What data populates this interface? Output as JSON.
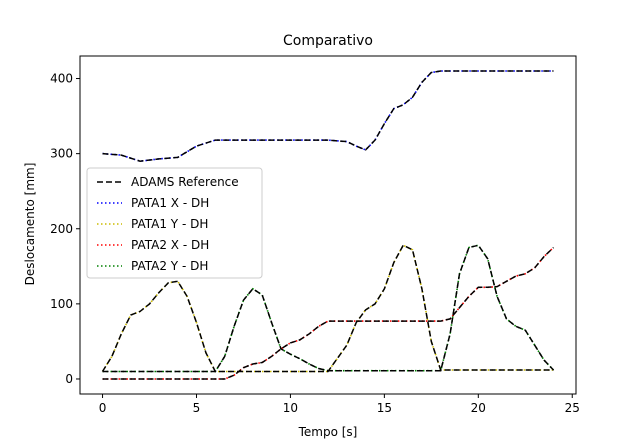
{
  "chart_data": {
    "type": "line",
    "title": "Comparativo",
    "xlabel": "Tempo [s]",
    "ylabel": "Deslocamento [mm]",
    "xlim": [
      -1.2,
      25.2
    ],
    "ylim": [
      -20,
      430
    ],
    "xticks": [
      0,
      5,
      10,
      15,
      20,
      25
    ],
    "yticks": [
      0,
      100,
      200,
      300,
      400
    ],
    "grid": false,
    "legend_position": "center-left",
    "reference_label": "ADAMS Reference",
    "series": [
      {
        "name": "PATA1 X - DH",
        "color": "#0000ff",
        "x": [
          0,
          1,
          2,
          3,
          4,
          5,
          6,
          7,
          8,
          9,
          10,
          11,
          12,
          13,
          13.5,
          14,
          14.5,
          15,
          15.5,
          16,
          16.5,
          17,
          17.5,
          18,
          19,
          20,
          21,
          22,
          23,
          24
        ],
        "y": [
          300,
          298,
          290,
          293,
          295,
          310,
          318,
          318,
          318,
          318,
          318,
          318,
          318,
          316,
          310,
          305,
          318,
          340,
          360,
          365,
          375,
          395,
          408,
          410,
          410,
          410,
          410,
          410,
          410,
          410
        ]
      },
      {
        "name": "PATA1 Y - DH",
        "color": "#ccbb00",
        "x": [
          0,
          0.5,
          1,
          1.5,
          2,
          2.5,
          3,
          3.5,
          4,
          4.5,
          5,
          5.5,
          6,
          7,
          8,
          9,
          10,
          11,
          12,
          13,
          13.5,
          14,
          14.5,
          15,
          15.5,
          16,
          16.5,
          17,
          17.5,
          18,
          19,
          20,
          21,
          22,
          23,
          24
        ],
        "y": [
          10,
          30,
          60,
          85,
          90,
          100,
          115,
          128,
          130,
          110,
          75,
          35,
          10,
          10,
          10,
          10,
          10,
          10,
          10,
          45,
          75,
          92,
          100,
          120,
          155,
          178,
          172,
          120,
          50,
          12,
          12,
          12,
          12,
          12,
          12,
          12
        ]
      },
      {
        "name": "PATA2 X - DH",
        "color": "#ff0000",
        "x": [
          0,
          1,
          2,
          3,
          4,
          5,
          6,
          6.5,
          7,
          7.5,
          8,
          8.5,
          9,
          9.5,
          10,
          10.5,
          11,
          11.5,
          12,
          13,
          14,
          15,
          16,
          17,
          18,
          18.5,
          19,
          19.5,
          20,
          20.5,
          21,
          21.5,
          22,
          22.5,
          23,
          23.5,
          24
        ],
        "y": [
          0,
          0,
          0,
          0,
          0,
          0,
          0,
          0,
          5,
          15,
          20,
          22,
          30,
          40,
          48,
          52,
          60,
          70,
          77,
          77,
          77,
          77,
          77,
          77,
          77,
          80,
          95,
          110,
          122,
          122,
          123,
          130,
          137,
          140,
          148,
          163,
          175
        ]
      },
      {
        "name": "PATA2 Y - DH",
        "color": "#008000",
        "x": [
          0,
          1,
          2,
          3,
          4,
          5,
          6,
          6.5,
          7,
          7.5,
          8,
          8.5,
          9,
          9.5,
          10,
          10.5,
          11,
          11.5,
          12,
          13,
          14,
          15,
          16,
          17,
          18,
          18.5,
          19,
          19.5,
          20,
          20.5,
          21,
          21.5,
          22,
          22.5,
          23,
          23.5,
          24
        ],
        "y": [
          10,
          10,
          10,
          10,
          10,
          10,
          10,
          30,
          70,
          105,
          120,
          112,
          75,
          40,
          33,
          27,
          20,
          14,
          11,
          11,
          11,
          11,
          11,
          11,
          11,
          60,
          140,
          175,
          178,
          160,
          110,
          80,
          70,
          65,
          45,
          25,
          12
        ]
      }
    ]
  }
}
